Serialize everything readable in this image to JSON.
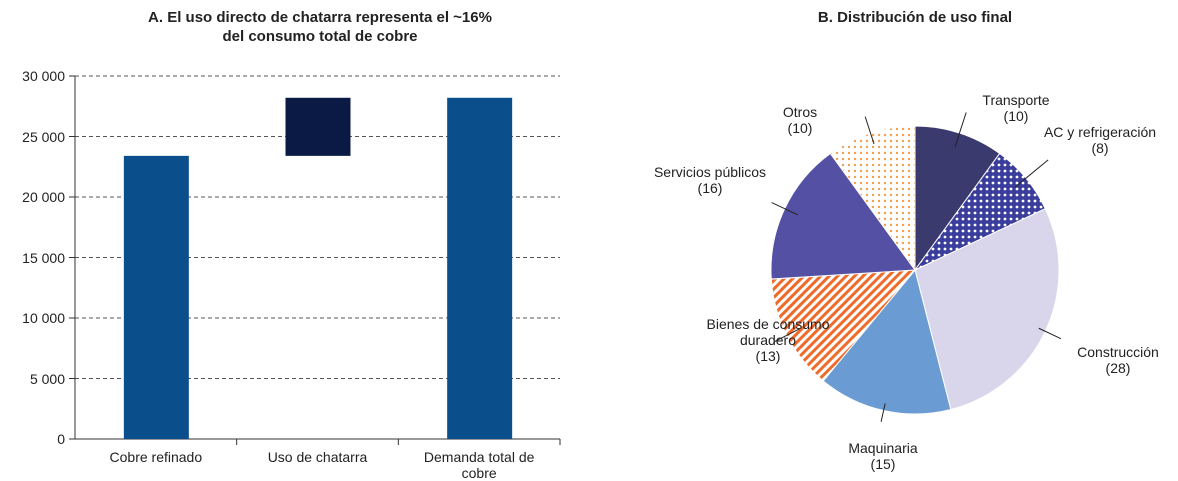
{
  "chart_data": [
    {
      "type": "waterfall",
      "title": [
        "A. El uso directo de chatarra representa el ~16%",
        "del consumo total de cobre"
      ],
      "categories": [
        "Cobre refinado",
        "Uso de chatarra",
        "Demanda total de cobre"
      ],
      "values": [
        23400,
        4800,
        28200
      ],
      "colors": [
        "#0a4f8c",
        "#0b1a45",
        "#0a4f8c"
      ],
      "ylim": [
        0,
        30000
      ],
      "yticks": [
        0,
        {
          "value": 5000,
          "label": "5 000"
        },
        {
          "value": 10000,
          "label": "10 000"
        },
        {
          "value": 15000,
          "label": "15 000"
        },
        {
          "value": 20000,
          "label": "20 000"
        },
        {
          "value": 25000,
          "label": "25 000"
        },
        {
          "value": 30000,
          "label": "30 000"
        }
      ],
      "grid": true
    },
    {
      "type": "pie",
      "title": "B. Distribución de uso final",
      "categories": [
        "Transporte",
        "AC y refrigeración",
        "Construcción",
        "Maquinaria",
        "Bienes de consumo duradero",
        "Servicios públicos",
        "Otros"
      ],
      "values": [
        10,
        8,
        28,
        15,
        13,
        16,
        10
      ],
      "value_labels": [
        "(10)",
        "(8)",
        "(28)",
        "(15)",
        "(13)",
        "(16)",
        "(10)"
      ],
      "colors": [
        "#3b3a6e",
        "#3a3d9b",
        "#d9d6eb",
        "#6a9bd3",
        "#f06a2a",
        "#5450a4",
        "#f3a04f"
      ],
      "patterns": [
        null,
        "dots",
        null,
        null,
        "hatch",
        null,
        "dots"
      ]
    }
  ]
}
